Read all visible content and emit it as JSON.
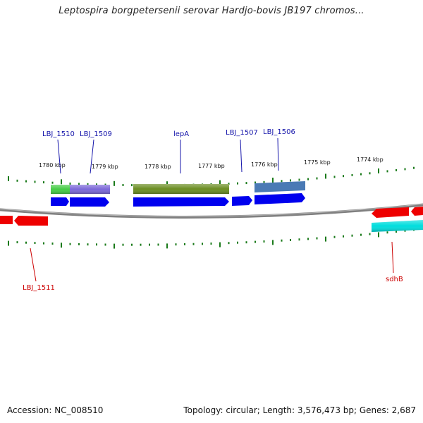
{
  "title": "Leptospira borgpetersenii serovar Hardjo-bovis JB197 chromos...",
  "footer": {
    "accession": "Accession: NC_008510",
    "summary": "Topology: circular; Length: 3,576,473 bp; Genes: 2,687"
  },
  "colors": {
    "cds": "#0000ee",
    "backbone": "#808080",
    "tick": "#1a7a1a",
    "label_top": "#1414aa",
    "label_bottom": "#cc0000",
    "feature_green": "#44cc44",
    "feature_purple": "#7b68d8",
    "feature_olive": "#6b8e23",
    "feature_steel": "#4a7ab5",
    "feature_red": "#ee0000",
    "feature_cyan": "#00dddd"
  },
  "kbp_labels": [
    "1780 kbp",
    "1779 kbp",
    "1778 kbp",
    "1777 kbp",
    "1776 kbp",
    "1775 kbp",
    "1774 kbp"
  ],
  "gene_labels_top": [
    "LBJ_1510",
    "LBJ_1509",
    "lepA",
    "LBJ_1507",
    "LBJ_1506"
  ],
  "gene_labels_bottom": [
    "LBJ_1511",
    "sdhB"
  ]
}
